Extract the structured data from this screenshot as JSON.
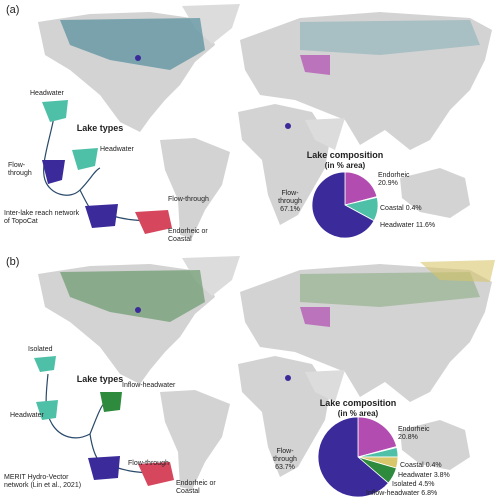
{
  "panels": [
    {
      "label": "(a)",
      "lake_types_title": "Lake types",
      "diagram_labels": [
        "Headwater",
        "Headwater",
        "Flow-through",
        "Flow-through",
        "Inter-lake reach network of TopoCat",
        "Endorheic or Coastal"
      ]
    },
    {
      "label": "(b)",
      "lake_types_title": "Lake types",
      "diagram_labels": [
        "Isolated",
        "Headwater",
        "Inflow-headwater",
        "Flow-through",
        "MERIT Hydro-Vector network (Lin et al., 2021)",
        "Endorheic or Coastal"
      ]
    }
  ],
  "chart_data": [
    {
      "type": "pie",
      "title": "Lake composition",
      "subtitle": "(in % area)",
      "categories": [
        "Endorheic",
        "Coastal",
        "Headwater",
        "Flow-through"
      ],
      "values": [
        20.9,
        0.4,
        11.6,
        67.1
      ],
      "value_labels": [
        "20.9%",
        "0.4%",
        "11.6%",
        "67.1%"
      ],
      "colors": [
        "#b24cb0",
        "#d6475e",
        "#4fc0a8",
        "#3a2a9a"
      ]
    },
    {
      "type": "pie",
      "title": "Lake composition",
      "subtitle": "(in % area)",
      "categories": [
        "Endorheic",
        "Coastal",
        "Headwater",
        "Isolated",
        "Inflow-headwater",
        "Flow-through"
      ],
      "values": [
        20.8,
        0.4,
        3.8,
        4.5,
        6.8,
        63.7
      ],
      "value_labels": [
        "20.8%",
        "0.4%",
        "3.8%",
        "4.5%",
        "6.8%",
        "63.7%"
      ],
      "colors": [
        "#b24cb0",
        "#d6475e",
        "#4fc0a8",
        "#d8c66a",
        "#2e8a3c",
        "#3a2a9a"
      ]
    }
  ]
}
